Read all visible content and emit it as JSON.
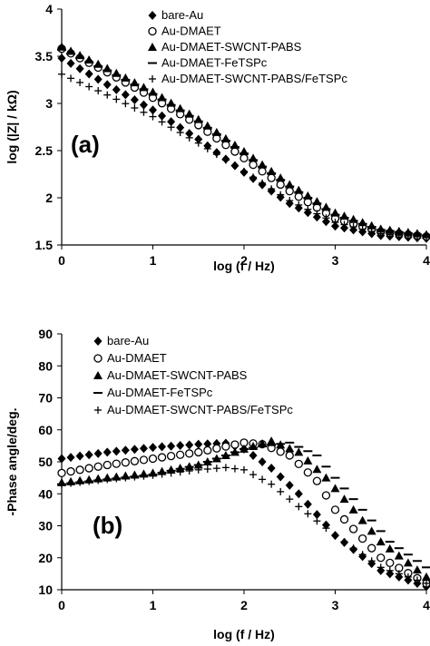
{
  "chart_data": [
    {
      "type": "scatter",
      "panel_label": "(a)",
      "xlabel": "log (f / Hz)",
      "ylabel": "log (|Z| / kΩ)",
      "xlim": [
        0,
        4
      ],
      "ylim": [
        1.5,
        4
      ],
      "xticks": [
        "0",
        "1",
        "2",
        "3",
        "4"
      ],
      "yticks": [
        "1.5",
        "2",
        "2.5",
        "3",
        "3.5",
        "4"
      ],
      "grid": false,
      "legend_position": "top-right",
      "series": [
        {
          "name": "bare-Au",
          "marker": "diamond",
          "x": [
            0,
            0.5,
            1,
            1.5,
            2,
            2.5,
            3,
            3.5,
            4
          ],
          "y": [
            3.48,
            3.2,
            2.93,
            2.62,
            2.27,
            1.94,
            1.7,
            1.6,
            1.57
          ]
        },
        {
          "name": "Au-DMAET",
          "marker": "circle",
          "x": [
            0,
            0.5,
            1,
            1.5,
            2,
            2.5,
            3,
            3.5,
            4
          ],
          "y": [
            3.58,
            3.33,
            3.06,
            2.77,
            2.42,
            2.07,
            1.78,
            1.64,
            1.59
          ]
        },
        {
          "name": "Au-DMAET-SWCNT-PABS",
          "marker": "triangle",
          "x": [
            0,
            0.5,
            1,
            1.5,
            2,
            2.5,
            3,
            3.5,
            4
          ],
          "y": [
            3.6,
            3.37,
            3.12,
            2.83,
            2.49,
            2.14,
            1.84,
            1.67,
            1.61
          ]
        },
        {
          "name": "Au-DMAET-FeTSPc",
          "marker": "dash",
          "x": [
            0,
            0.5,
            1,
            1.5,
            2,
            2.5,
            3,
            3.5,
            4
          ],
          "y": [
            3.57,
            3.35,
            3.1,
            2.81,
            2.47,
            2.12,
            1.82,
            1.66,
            1.6
          ]
        },
        {
          "name": "Au-DMAET-SWCNT-PABS/FeTSPc",
          "marker": "plus",
          "x": [
            0,
            0.5,
            1,
            1.5,
            2,
            2.5,
            3,
            3.5,
            4
          ],
          "y": [
            3.31,
            3.09,
            2.86,
            2.58,
            2.28,
            1.97,
            1.74,
            1.62,
            1.58
          ]
        }
      ]
    },
    {
      "type": "scatter",
      "panel_label": "(b)",
      "xlabel": "log (f / Hz)",
      "ylabel": "-Phase angle/deg.",
      "xlim": [
        0,
        4
      ],
      "ylim": [
        10,
        90
      ],
      "xticks": [
        "0",
        "1",
        "2",
        "3",
        "4"
      ],
      "yticks": [
        "10",
        "20",
        "30",
        "40",
        "50",
        "60",
        "70",
        "80",
        "90"
      ],
      "grid": false,
      "legend_position": "top-center",
      "series": [
        {
          "name": "bare-Au",
          "marker": "diamond",
          "x": [
            0,
            0.5,
            1,
            1.5,
            1.8,
            2,
            2.3,
            2.6,
            3,
            3.5,
            4
          ],
          "y": [
            51,
            53,
            54.5,
            55.5,
            55.8,
            54,
            48,
            40,
            27,
            16,
            11
          ]
        },
        {
          "name": "Au-DMAET",
          "marker": "circle",
          "x": [
            0,
            0.5,
            1,
            1.5,
            2,
            2.2,
            2.5,
            2.8,
            3,
            3.5,
            4
          ],
          "y": [
            46.5,
            49,
            51,
            53,
            56,
            55.5,
            52,
            44,
            35,
            20,
            12
          ]
        },
        {
          "name": "Au-DMAET-SWCNT-PABS",
          "marker": "triangle",
          "x": [
            0,
            0.5,
            1,
            1.5,
            2,
            2.3,
            2.6,
            2.9,
            3.2,
            3.5,
            4
          ],
          "y": [
            43.5,
            45,
            46.5,
            49,
            54,
            56.5,
            53,
            45,
            35,
            25,
            14
          ]
        },
        {
          "name": "Au-DMAET-FeTSPc",
          "marker": "dash",
          "x": [
            0,
            0.5,
            1,
            1.5,
            2,
            2.5,
            2.8,
            3,
            3.3,
            3.6,
            4
          ],
          "y": [
            43,
            44.5,
            46,
            49,
            54,
            56,
            52,
            45,
            35,
            25,
            17
          ]
        },
        {
          "name": "Au-DMAET-SWCNT-PABS/FeTSPc",
          "marker": "plus",
          "x": [
            0,
            0.5,
            1,
            1.5,
            1.8,
            2,
            2.3,
            2.6,
            3,
            3.5,
            4
          ],
          "y": [
            43,
            44.5,
            45.8,
            47.5,
            48.2,
            47.5,
            43,
            36,
            27,
            17,
            12
          ]
        }
      ]
    }
  ]
}
